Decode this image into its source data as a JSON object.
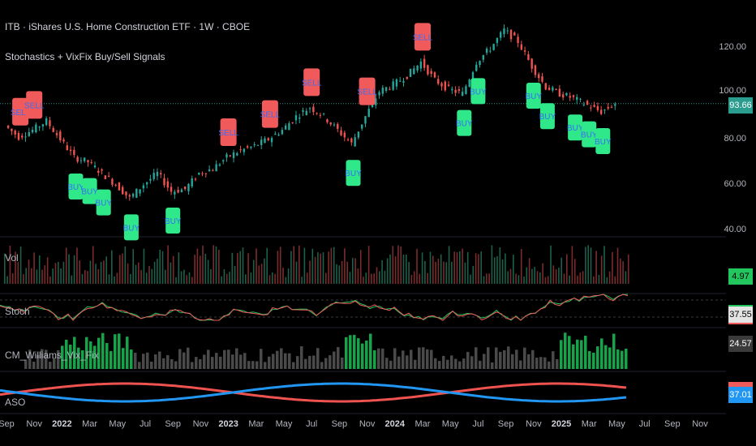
{
  "header": {
    "symbol_line": "ITB · iShares U.S. Home Construction ETF · 1W · CBOE",
    "indicator_line": "Stochastics + VixFix Buy/Sell Signals"
  },
  "panes": {
    "vol_label": "Vol",
    "stoch_label": "Stoch",
    "vix_label": "CM_Williams_Vix_Fix",
    "aso_label": "ASO"
  },
  "price_axis": {
    "ticks": [
      "120.00",
      "100.00",
      "80.00",
      "60.00",
      "40.00"
    ],
    "last_price": "93.66",
    "last_price_color": "#2a9d8f"
  },
  "indicator_tags": {
    "vol": "4.97 M",
    "stoch": "37.55",
    "vix": "24.57",
    "aso": "37.01"
  },
  "time_axis": [
    {
      "label": "Sep",
      "year": false
    },
    {
      "label": "Nov",
      "year": false
    },
    {
      "label": "2022",
      "year": true
    },
    {
      "label": "Mar",
      "year": false
    },
    {
      "label": "May",
      "year": false
    },
    {
      "label": "Jul",
      "year": false
    },
    {
      "label": "Sep",
      "year": false
    },
    {
      "label": "Nov",
      "year": false
    },
    {
      "label": "2023",
      "year": true
    },
    {
      "label": "Mar",
      "year": false
    },
    {
      "label": "May",
      "year": false
    },
    {
      "label": "Jul",
      "year": false
    },
    {
      "label": "Sep",
      "year": false
    },
    {
      "label": "Nov",
      "year": false
    },
    {
      "label": "2024",
      "year": true
    },
    {
      "label": "Mar",
      "year": false
    },
    {
      "label": "May",
      "year": false
    },
    {
      "label": "Jul",
      "year": false
    },
    {
      "label": "Sep",
      "year": false
    },
    {
      "label": "Nov",
      "year": false
    },
    {
      "label": "2025",
      "year": true
    },
    {
      "label": "Mar",
      "year": false
    },
    {
      "label": "May",
      "year": false
    },
    {
      "label": "Jul",
      "year": false
    },
    {
      "label": "Sep",
      "year": false
    },
    {
      "label": "Nov",
      "year": false
    }
  ],
  "signals": {
    "sell_label": "SELL",
    "buy_label": "BUY",
    "sell_color": "#f05a5a",
    "buy_color": "#2ee88a",
    "text_color": "#3b6cf5"
  },
  "chart_data": {
    "type": "line",
    "title": "ITB · iShares U.S. Home Construction ETF · 1W · CBOE",
    "xlabel": "",
    "ylabel": "",
    "ylim": [
      40,
      130
    ],
    "price_series": [
      {
        "date": "2021-09",
        "close": 84
      },
      {
        "date": "2021-10",
        "close": 79
      },
      {
        "date": "2021-11",
        "close": 82
      },
      {
        "date": "2021-12",
        "close": 86
      },
      {
        "date": "2022-01",
        "close": 78
      },
      {
        "date": "2022-02",
        "close": 70
      },
      {
        "date": "2022-03",
        "close": 68
      },
      {
        "date": "2022-04",
        "close": 63
      },
      {
        "date": "2022-05",
        "close": 58
      },
      {
        "date": "2022-06",
        "close": 52
      },
      {
        "date": "2022-07",
        "close": 58
      },
      {
        "date": "2022-08",
        "close": 63
      },
      {
        "date": "2022-09",
        "close": 55
      },
      {
        "date": "2022-10",
        "close": 56
      },
      {
        "date": "2022-11",
        "close": 63
      },
      {
        "date": "2022-12",
        "close": 65
      },
      {
        "date": "2023-01",
        "close": 70
      },
      {
        "date": "2023-02",
        "close": 73
      },
      {
        "date": "2023-03",
        "close": 75
      },
      {
        "date": "2023-04",
        "close": 78
      },
      {
        "date": "2023-05",
        "close": 82
      },
      {
        "date": "2023-06",
        "close": 88
      },
      {
        "date": "2023-07",
        "close": 92
      },
      {
        "date": "2023-08",
        "close": 88
      },
      {
        "date": "2023-09",
        "close": 82
      },
      {
        "date": "2023-10",
        "close": 76
      },
      {
        "date": "2023-11",
        "close": 88
      },
      {
        "date": "2023-12",
        "close": 99
      },
      {
        "date": "2024-01",
        "close": 102
      },
      {
        "date": "2024-02",
        "close": 106
      },
      {
        "date": "2024-03",
        "close": 112
      },
      {
        "date": "2024-04",
        "close": 104
      },
      {
        "date": "2024-05",
        "close": 100
      },
      {
        "date": "2024-06",
        "close": 98
      },
      {
        "date": "2024-07",
        "close": 112
      },
      {
        "date": "2024-08",
        "close": 118
      },
      {
        "date": "2024-09",
        "close": 126
      },
      {
        "date": "2024-10",
        "close": 121
      },
      {
        "date": "2024-11",
        "close": 110
      },
      {
        "date": "2024-12",
        "close": 101
      },
      {
        "date": "2025-01",
        "close": 98
      },
      {
        "date": "2025-02",
        "close": 96
      },
      {
        "date": "2025-03",
        "close": 93
      },
      {
        "date": "2025-04",
        "close": 90
      },
      {
        "date": "2025-05",
        "close": 93.66
      }
    ],
    "signal_markers": [
      {
        "type": "SELL",
        "date": "2021-10"
      },
      {
        "type": "SELL",
        "date": "2021-11"
      },
      {
        "type": "BUY",
        "date": "2022-02"
      },
      {
        "type": "BUY",
        "date": "2022-03"
      },
      {
        "type": "BUY",
        "date": "2022-04"
      },
      {
        "type": "BUY",
        "date": "2022-06"
      },
      {
        "type": "BUY",
        "date": "2022-09"
      },
      {
        "type": "SELL",
        "date": "2023-01"
      },
      {
        "type": "SELL",
        "date": "2023-04"
      },
      {
        "type": "SELL",
        "date": "2023-07"
      },
      {
        "type": "BUY",
        "date": "2023-10"
      },
      {
        "type": "SELL",
        "date": "2023-11"
      },
      {
        "type": "SELL",
        "date": "2024-03"
      },
      {
        "type": "BUY",
        "date": "2024-06"
      },
      {
        "type": "BUY",
        "date": "2024-07"
      },
      {
        "type": "BUY",
        "date": "2024-11"
      },
      {
        "type": "BUY",
        "date": "2024-12"
      },
      {
        "type": "BUY",
        "date": "2025-02"
      },
      {
        "type": "BUY",
        "date": "2025-03"
      },
      {
        "type": "BUY",
        "date": "2025-04"
      }
    ]
  }
}
